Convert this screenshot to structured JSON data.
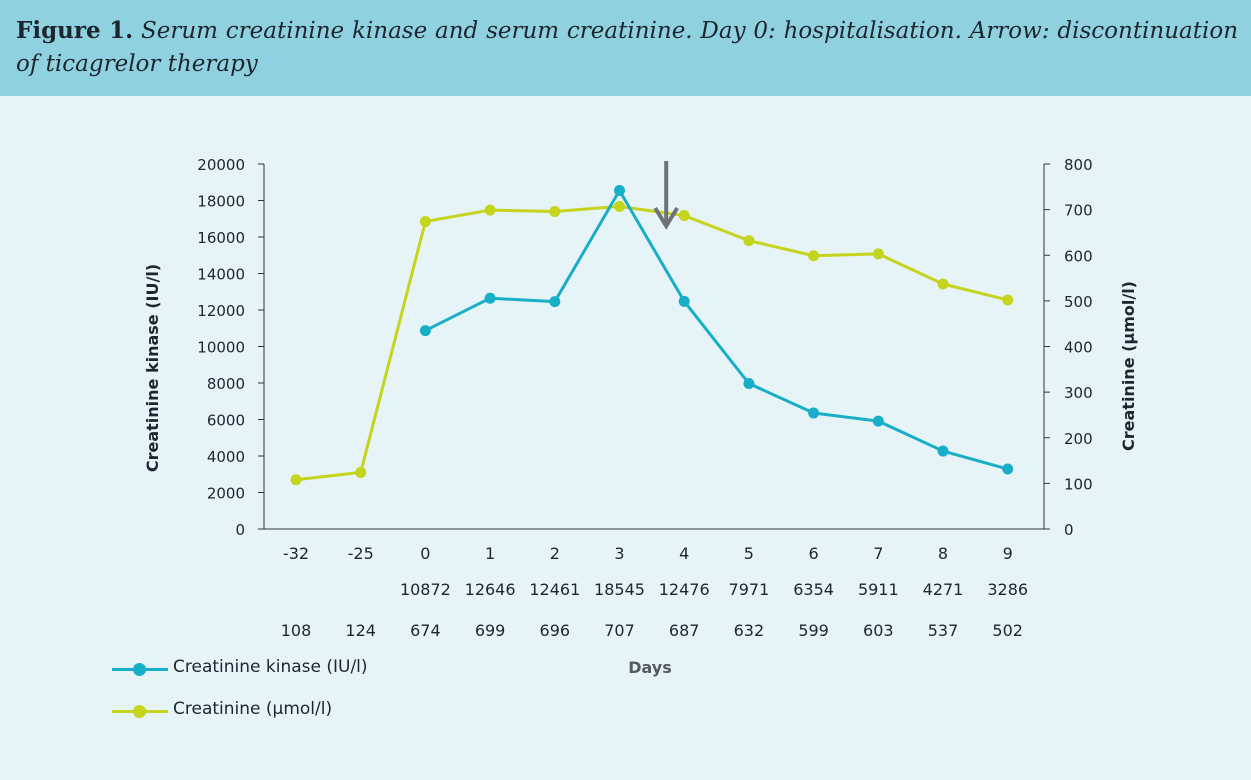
{
  "caption": {
    "label": "Figure 1.",
    "text": "Serum creatinine kinase and serum creatinine. Day 0: hospitalisation. Arrow: discontinuation of ticagrelor therapy"
  },
  "colors": {
    "ck": "#19aec8",
    "creatinine": "#c5d41c",
    "axis": "#333333",
    "arrow": "#6d7274",
    "caption_bg": "#8fd1df",
    "plot_bg": "#e6f4f8"
  },
  "chart_data": {
    "type": "line",
    "x": [
      "-32",
      "-25",
      "0",
      "1",
      "2",
      "3",
      "4",
      "5",
      "6",
      "7",
      "8",
      "9"
    ],
    "xlabel": "Days",
    "ylabel_left": "Creatinine kinase (IU/l)",
    "ylabel_right": "Creatinine (μmol/l)",
    "ylim_left": [
      0,
      20000
    ],
    "ylim_right": [
      0,
      800
    ],
    "yticks_left": [
      0,
      2000,
      4000,
      6000,
      8000,
      10000,
      12000,
      14000,
      16000,
      18000,
      20000
    ],
    "yticks_right": [
      0,
      100,
      200,
      300,
      400,
      500,
      600,
      700,
      800
    ],
    "grid": false,
    "legend_position": "bottom-left",
    "series": [
      {
        "name": "Creatinine kinase (IU/l)",
        "axis": "left",
        "color": "#19aec8",
        "values": [
          null,
          null,
          10872,
          12646,
          12461,
          18545,
          12476,
          7971,
          6354,
          5911,
          4271,
          3286
        ]
      },
      {
        "name": "Creatinine (μmol/l)",
        "axis": "right",
        "color": "#c5d41c",
        "values": [
          108,
          124,
          674,
          699,
          696,
          707,
          687,
          632,
          599,
          603,
          537,
          502
        ]
      }
    ],
    "table_rows": [
      [
        "",
        "",
        "10872",
        "12646",
        "12461",
        "18545",
        "12476",
        "7971",
        "6354",
        "5911",
        "4271",
        "3286"
      ],
      [
        "108",
        "124",
        "674",
        "699",
        "696",
        "707",
        "687",
        "632",
        "599",
        "603",
        "537",
        "502"
      ]
    ],
    "annotation": {
      "type": "arrow",
      "direction": "down",
      "at_day": "4"
    }
  }
}
